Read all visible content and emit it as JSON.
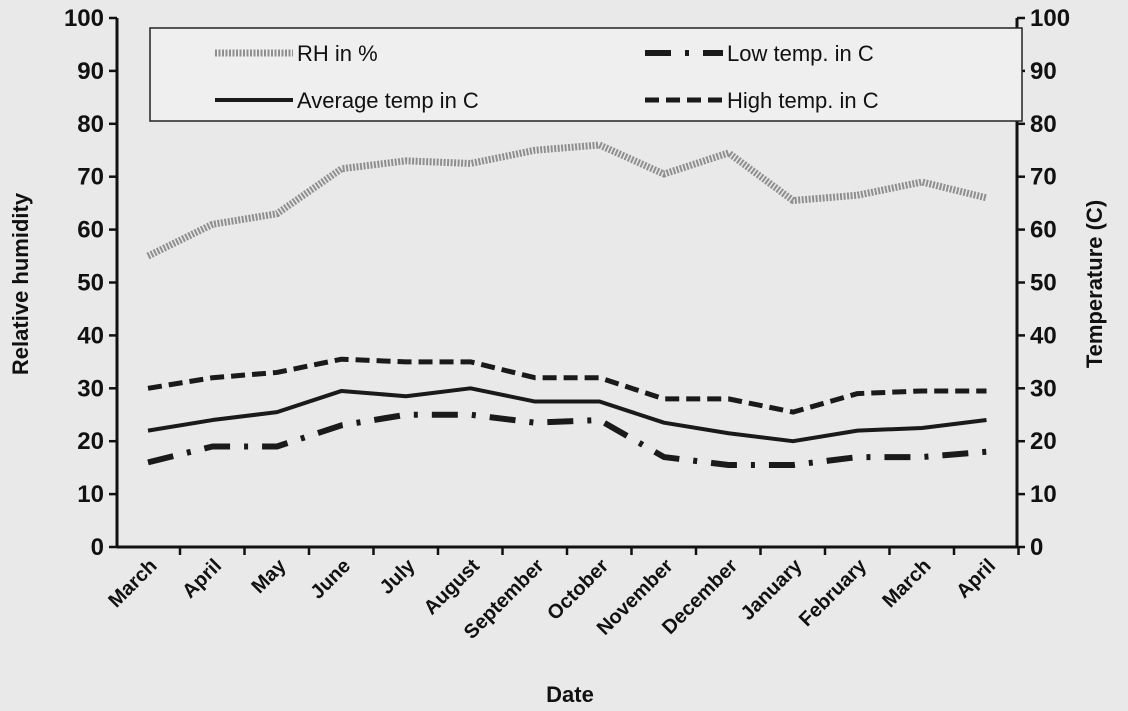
{
  "chart_data": {
    "type": "line",
    "xlabel": "Date",
    "ylabel": "Relative humidity",
    "y2label": "Temperature (C)",
    "ylim": [
      0,
      100
    ],
    "y2lim": [
      0,
      100
    ],
    "yticks": [
      0,
      10,
      20,
      30,
      40,
      50,
      60,
      70,
      80,
      90,
      100
    ],
    "categories": [
      "March",
      "April",
      "May",
      "June",
      "July",
      "August",
      "September",
      "October",
      "November",
      "December",
      "January",
      "February",
      "March",
      "April"
    ],
    "legend_position": "top",
    "grid": false,
    "series": [
      {
        "name": "RH in %",
        "axis": "left",
        "style": "dotted-thick",
        "color": "#8a8a8a",
        "values": [
          55,
          61,
          63,
          71.5,
          73,
          72.5,
          75,
          76,
          70.5,
          74.5,
          65.5,
          66.5,
          69,
          66
        ]
      },
      {
        "name": "Low temp. in C",
        "axis": "right",
        "style": "dash-dot",
        "color": "#1a1a1a",
        "values": [
          16,
          19,
          19,
          23,
          25,
          25,
          23.5,
          24,
          17,
          15.5,
          15.5,
          17,
          17,
          18
        ]
      },
      {
        "name": "Average temp in C",
        "axis": "right",
        "style": "solid",
        "color": "#1a1a1a",
        "values": [
          22,
          24,
          25.5,
          29.5,
          28.5,
          30,
          27.5,
          27.5,
          23.5,
          21.5,
          20,
          22,
          22.5,
          24
        ]
      },
      {
        "name": "High temp. in C",
        "axis": "right",
        "style": "dashed",
        "color": "#1a1a1a",
        "values": [
          30,
          32,
          33,
          35.5,
          35,
          35,
          32,
          32,
          28,
          28,
          25.5,
          29,
          29.5,
          29.5
        ]
      }
    ]
  }
}
